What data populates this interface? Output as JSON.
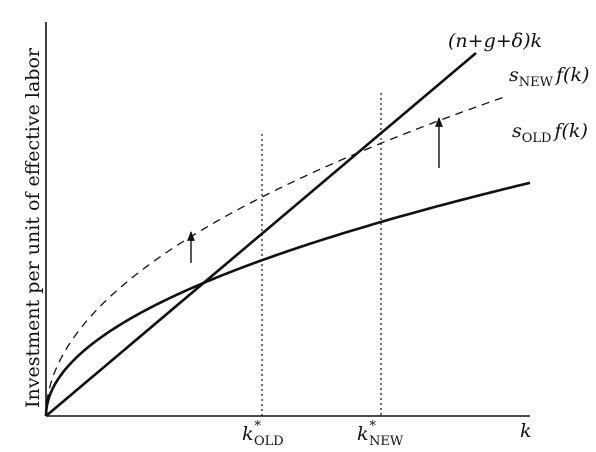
{
  "axes": {
    "y_label": "Investment per unit of effective labor",
    "x_label": "k"
  },
  "curves": {
    "break_even": "(n+g+δ)k",
    "s_new_main": "s",
    "s_new_sub": "NEW",
    "s_new_rest": "f(k)",
    "s_old_main": "s",
    "s_old_sub": "OLD",
    "s_old_rest": "f(k)"
  },
  "ticks": {
    "k_old_main": "k",
    "k_old_sup": "*",
    "k_old_sub": "OLD",
    "k_new_main": "k",
    "k_new_sup": "*",
    "k_new_sub": "NEW"
  }
}
